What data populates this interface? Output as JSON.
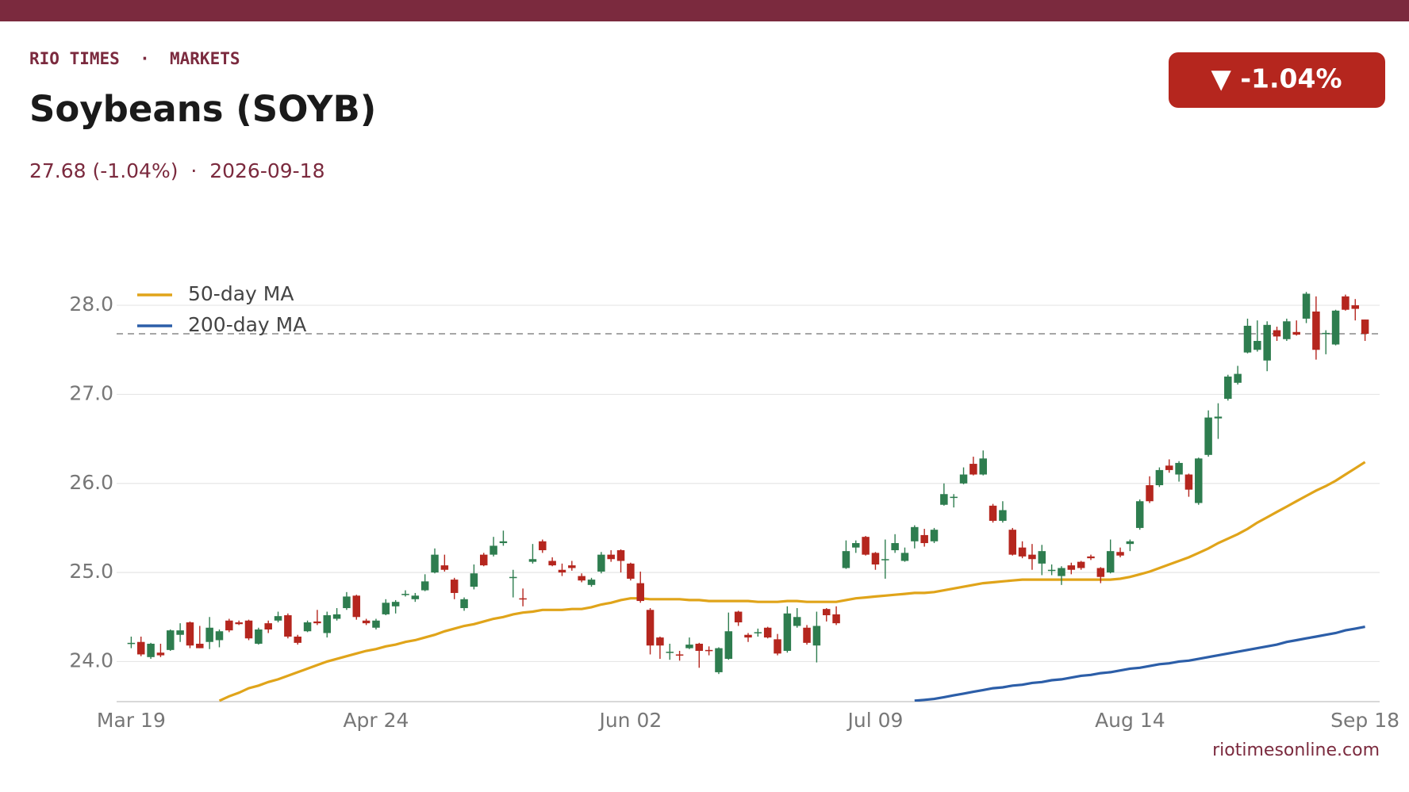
{
  "kicker": "RIO TIMES  ·  MARKETS",
  "title": "Soybeans (SOYB)",
  "subtitle": "27.68 (-1.04%)  ·  2026-09-18",
  "badge": "▼ -1.04%",
  "footer": "riotimesonline.com",
  "chart_data": {
    "type": "candlestick",
    "categories": [
      "Mar 19",
      null,
      null,
      null,
      null,
      null,
      null,
      null,
      null,
      null,
      null,
      null,
      null,
      null,
      null,
      null,
      null,
      null,
      null,
      null,
      null,
      null,
      null,
      null,
      null,
      "Apr 24",
      null,
      null,
      null,
      null,
      null,
      null,
      null,
      null,
      null,
      null,
      null,
      null,
      null,
      null,
      null,
      null,
      null,
      null,
      null,
      null,
      null,
      null,
      null,
      null,
      null,
      "Jun 02",
      null,
      null,
      null,
      null,
      null,
      null,
      null,
      null,
      null,
      null,
      null,
      null,
      null,
      null,
      null,
      null,
      null,
      null,
      null,
      null,
      null,
      null,
      null,
      null,
      "Jul 09",
      null,
      null,
      null,
      null,
      null,
      null,
      null,
      null,
      null,
      null,
      null,
      null,
      null,
      null,
      null,
      null,
      null,
      null,
      null,
      null,
      null,
      null,
      null,
      null,
      null,
      "Aug 14",
      null,
      null,
      null,
      null,
      null,
      null,
      null,
      null,
      null,
      null,
      null,
      null,
      null,
      null,
      null,
      null,
      null,
      null,
      null,
      null,
      null,
      null,
      null,
      "Sep 18"
    ],
    "open": [
      24.2,
      24.22,
      24.05,
      24.1,
      24.13,
      24.3,
      24.44,
      24.2,
      24.22,
      24.24,
      24.46,
      24.44,
      24.46,
      24.2,
      24.43,
      24.46,
      24.52,
      24.28,
      24.34,
      24.45,
      24.32,
      24.48,
      24.6,
      24.74,
      24.46,
      24.38,
      24.53,
      24.62,
      24.75,
      24.7,
      24.8,
      25.0,
      25.08,
      24.92,
      24.6,
      24.84,
      25.2,
      25.2,
      25.33,
      24.94,
      24.71,
      25.12,
      25.35,
      25.13,
      25.03,
      25.08,
      24.96,
      24.86,
      25.01,
      25.2,
      25.25,
      25.1,
      24.88,
      24.58,
      24.27,
      24.1,
      24.08,
      24.15,
      24.2,
      24.13,
      23.88,
      24.03,
      24.56,
      24.3,
      24.32,
      24.38,
      24.25,
      24.12,
      24.4,
      24.38,
      24.18,
      24.59,
      24.53,
      25.05,
      25.28,
      25.4,
      25.22,
      25.14,
      25.25,
      25.13,
      25.35,
      25.42,
      25.35,
      25.76,
      25.84,
      26.0,
      26.22,
      26.1,
      25.75,
      25.58,
      25.48,
      25.28,
      25.2,
      25.1,
      25.02,
      24.96,
      25.08,
      25.12,
      25.18,
      25.05,
      25.0,
      25.23,
      25.32,
      25.5,
      25.98,
      25.98,
      26.2,
      26.1,
      26.1,
      25.78,
      26.32,
      26.73,
      26.95,
      27.13,
      27.47,
      27.5,
      27.38,
      27.72,
      27.62,
      27.7,
      27.85,
      27.93,
      27.68,
      27.56,
      28.1,
      28.0,
      27.84
    ],
    "high": [
      24.28,
      24.28,
      24.21,
      24.2,
      24.36,
      24.43,
      24.45,
      24.4,
      24.5,
      24.36,
      24.48,
      24.46,
      24.47,
      24.38,
      24.46,
      24.56,
      24.54,
      24.3,
      24.46,
      24.58,
      24.56,
      24.6,
      24.78,
      24.75,
      24.48,
      24.48,
      24.7,
      24.69,
      24.8,
      24.77,
      24.98,
      25.27,
      25.2,
      24.94,
      24.72,
      25.09,
      25.22,
      25.4,
      25.47,
      25.03,
      24.82,
      25.32,
      25.37,
      25.17,
      25.1,
      25.13,
      24.99,
      24.94,
      25.23,
      25.25,
      25.26,
      25.11,
      25.01,
      24.6,
      24.28,
      24.2,
      24.12,
      24.27,
      24.21,
      24.17,
      24.16,
      24.55,
      24.57,
      24.32,
      24.37,
      24.39,
      24.31,
      24.62,
      24.6,
      24.41,
      24.56,
      24.6,
      24.62,
      25.36,
      25.36,
      25.41,
      25.23,
      25.37,
      25.43,
      25.28,
      25.53,
      25.49,
      25.5,
      26.0,
      25.88,
      26.18,
      26.3,
      26.37,
      25.77,
      25.8,
      25.5,
      25.35,
      25.32,
      25.31,
      25.09,
      25.07,
      25.11,
      25.13,
      25.2,
      25.06,
      25.37,
      25.28,
      25.37,
      25.82,
      26.08,
      26.18,
      26.27,
      26.25,
      26.11,
      26.29,
      26.82,
      26.9,
      27.22,
      27.32,
      27.85,
      27.83,
      27.82,
      27.76,
      27.85,
      27.83,
      28.15,
      28.1,
      27.72,
      27.95,
      28.12,
      28.07,
      27.84
    ],
    "low": [
      24.15,
      24.06,
      24.03,
      24.05,
      24.12,
      24.22,
      24.15,
      24.15,
      24.14,
      24.16,
      24.33,
      24.41,
      24.24,
      24.19,
      24.32,
      24.44,
      24.26,
      24.19,
      24.33,
      24.41,
      24.27,
      24.46,
      24.58,
      24.47,
      24.41,
      24.36,
      24.52,
      24.54,
      24.73,
      24.67,
      24.79,
      24.99,
      25.01,
      24.7,
      24.57,
      24.81,
      25.07,
      25.18,
      25.3,
      24.72,
      24.62,
      25.1,
      25.22,
      25.07,
      24.96,
      25.02,
      24.89,
      24.84,
      24.99,
      25.12,
      25.0,
      24.91,
      24.66,
      24.08,
      24.03,
      24.02,
      24.01,
      24.14,
      23.93,
      24.07,
      23.86,
      24.02,
      24.4,
      24.22,
      24.28,
      24.26,
      24.07,
      24.1,
      24.38,
      24.19,
      23.99,
      24.45,
      24.41,
      25.04,
      25.22,
      25.19,
      25.03,
      24.93,
      25.22,
      25.12,
      25.27,
      25.29,
      25.33,
      25.75,
      25.73,
      25.99,
      26.09,
      26.09,
      25.56,
      25.56,
      25.19,
      25.16,
      25.03,
      24.97,
      24.97,
      24.86,
      24.98,
      25.03,
      25.14,
      24.88,
      24.99,
      25.17,
      25.24,
      25.48,
      25.78,
      25.96,
      26.12,
      26.02,
      25.85,
      25.76,
      26.3,
      26.5,
      26.93,
      27.11,
      27.46,
      27.48,
      27.26,
      27.6,
      27.6,
      27.66,
      27.8,
      27.39,
      27.45,
      27.55,
      27.94,
      27.83,
      27.6
    ],
    "close": [
      24.21,
      24.08,
      24.2,
      24.07,
      24.35,
      24.35,
      24.18,
      24.15,
      24.38,
      24.34,
      24.35,
      24.42,
      24.26,
      24.36,
      24.36,
      24.51,
      24.28,
      24.21,
      24.44,
      24.43,
      24.52,
      24.53,
      24.73,
      24.5,
      24.43,
      24.46,
      24.66,
      24.67,
      24.76,
      24.74,
      24.9,
      25.2,
      25.03,
      24.77,
      24.7,
      24.99,
      25.08,
      25.3,
      25.35,
      24.95,
      24.7,
      25.15,
      25.25,
      25.08,
      25.0,
      25.05,
      24.91,
      24.92,
      25.2,
      25.15,
      25.13,
      24.93,
      24.68,
      24.18,
      24.18,
      24.11,
      24.07,
      24.19,
      24.12,
      24.12,
      24.15,
      24.34,
      24.44,
      24.27,
      24.33,
      24.27,
      24.09,
      24.54,
      24.5,
      24.21,
      24.4,
      24.52,
      24.43,
      25.24,
      25.33,
      25.2,
      25.09,
      25.15,
      25.33,
      25.22,
      25.51,
      25.33,
      25.48,
      25.88,
      25.85,
      26.1,
      26.1,
      26.28,
      25.58,
      25.7,
      25.2,
      25.18,
      25.15,
      25.24,
      25.03,
      25.05,
      25.03,
      25.05,
      25.16,
      24.95,
      25.24,
      25.19,
      25.35,
      25.8,
      25.8,
      26.15,
      26.15,
      26.23,
      25.93,
      26.28,
      26.74,
      26.75,
      27.2,
      27.23,
      27.77,
      27.6,
      27.78,
      27.65,
      27.82,
      27.67,
      28.13,
      27.5,
      27.69,
      27.94,
      27.95,
      27.96,
      27.68
    ],
    "up_color": "#2e7d4f",
    "down_color": "#b5261e",
    "lines": [
      {
        "name": "50-day MA",
        "color": "#e0a41a",
        "values": [
          null,
          null,
          null,
          null,
          null,
          null,
          null,
          null,
          null,
          23.56,
          23.61,
          23.65,
          23.7,
          23.73,
          23.77,
          23.8,
          23.84,
          23.88,
          23.92,
          23.96,
          24.0,
          24.03,
          24.06,
          24.09,
          24.12,
          24.14,
          24.17,
          24.19,
          24.22,
          24.24,
          24.27,
          24.3,
          24.34,
          24.37,
          24.4,
          24.42,
          24.45,
          24.48,
          24.5,
          24.53,
          24.55,
          24.56,
          24.58,
          24.58,
          24.58,
          24.59,
          24.59,
          24.61,
          24.64,
          24.66,
          24.69,
          24.71,
          24.71,
          24.7,
          24.7,
          24.7,
          24.7,
          24.69,
          24.69,
          24.68,
          24.68,
          24.68,
          24.68,
          24.68,
          24.67,
          24.67,
          24.67,
          24.68,
          24.68,
          24.67,
          24.67,
          24.67,
          24.67,
          24.69,
          24.71,
          24.72,
          24.73,
          24.74,
          24.75,
          24.76,
          24.77,
          24.77,
          24.78,
          24.8,
          24.82,
          24.84,
          24.86,
          24.88,
          24.89,
          24.9,
          24.91,
          24.92,
          24.92,
          24.92,
          24.92,
          24.92,
          24.92,
          24.92,
          24.92,
          24.92,
          24.92,
          24.93,
          24.95,
          24.98,
          25.01,
          25.05,
          25.09,
          25.13,
          25.17,
          25.22,
          25.27,
          25.33,
          25.38,
          25.43,
          25.49,
          25.56,
          25.62,
          25.68,
          25.74,
          25.8,
          25.86,
          25.92,
          25.97,
          26.03,
          26.1,
          26.17,
          26.24
        ]
      },
      {
        "name": "200-day MA",
        "color": "#2c5ea8",
        "values": [
          null,
          null,
          null,
          null,
          null,
          null,
          null,
          null,
          null,
          null,
          null,
          null,
          null,
          null,
          null,
          null,
          null,
          null,
          null,
          null,
          null,
          null,
          null,
          null,
          null,
          null,
          null,
          null,
          null,
          null,
          null,
          null,
          null,
          null,
          null,
          null,
          null,
          null,
          null,
          null,
          null,
          null,
          null,
          null,
          null,
          null,
          null,
          null,
          null,
          null,
          null,
          null,
          null,
          null,
          null,
          null,
          null,
          null,
          null,
          null,
          null,
          null,
          null,
          null,
          null,
          null,
          null,
          null,
          null,
          null,
          null,
          null,
          null,
          null,
          null,
          null,
          null,
          null,
          null,
          null,
          23.56,
          23.57,
          23.58,
          23.6,
          23.62,
          23.64,
          23.66,
          23.68,
          23.7,
          23.71,
          23.73,
          23.74,
          23.76,
          23.77,
          23.79,
          23.8,
          23.82,
          23.84,
          23.85,
          23.87,
          23.88,
          23.9,
          23.92,
          23.93,
          23.95,
          23.97,
          23.98,
          24.0,
          24.01,
          24.03,
          24.05,
          24.07,
          24.09,
          24.11,
          24.13,
          24.15,
          24.17,
          24.19,
          24.22,
          24.24,
          24.26,
          24.28,
          24.3,
          24.32,
          24.35,
          24.37,
          24.39
        ]
      }
    ],
    "reference_line": 27.68,
    "ylim": [
      23.55,
      28.25
    ],
    "yticks": [
      {
        "value": 24,
        "label": "24.0"
      },
      {
        "value": 25,
        "label": "25.0"
      },
      {
        "value": 26,
        "label": "26.0"
      },
      {
        "value": 27,
        "label": "27.0"
      },
      {
        "value": 28,
        "label": "28.0"
      }
    ],
    "grid": true,
    "legend": "upper left"
  }
}
